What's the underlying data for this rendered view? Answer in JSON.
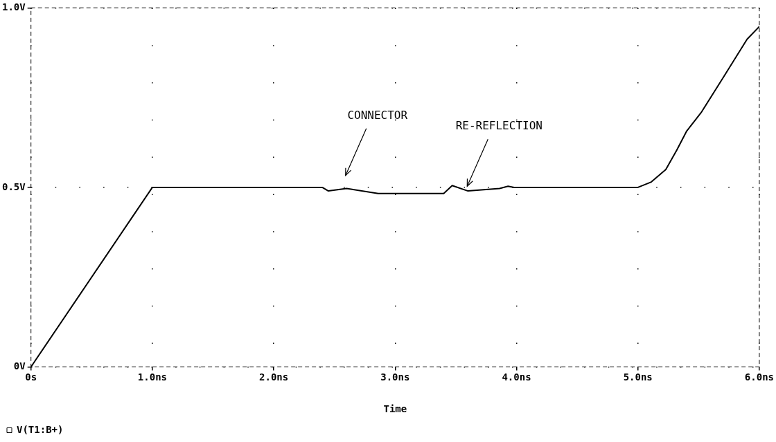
{
  "chart_data": {
    "type": "line",
    "xlabel": "Time",
    "x": [
      0,
      1.0,
      2.4,
      2.45,
      2.6,
      2.86,
      3.4,
      3.47,
      3.6,
      3.86,
      3.93,
      3.98,
      5.0,
      5.11,
      5.23,
      5.32,
      5.4,
      5.52,
      5.71,
      5.9,
      6.0
    ],
    "series": [
      {
        "name": "V(T1:B+)",
        "color": "#000000",
        "values": [
          0,
          0.5,
          0.5,
          0.49,
          0.497,
          0.483,
          0.483,
          0.505,
          0.49,
          0.497,
          0.503,
          0.5,
          0.5,
          0.515,
          0.55,
          0.604,
          0.656,
          0.708,
          0.81,
          0.913,
          0.948
        ]
      }
    ],
    "xlim": [
      0,
      6
    ],
    "ylim": [
      0,
      1
    ],
    "xticks": [
      {
        "value": 0,
        "label": "0s"
      },
      {
        "value": 1,
        "label": "1.0ns"
      },
      {
        "value": 2,
        "label": "2.0ns"
      },
      {
        "value": 3,
        "label": "3.0ns"
      },
      {
        "value": 4,
        "label": "4.0ns"
      },
      {
        "value": 5,
        "label": "5.0ns"
      },
      {
        "value": 6,
        "label": "6.0ns"
      }
    ],
    "yticks": [
      {
        "value": 0,
        "label": "0V"
      },
      {
        "value": 0.5,
        "label": "0.5V"
      },
      {
        "value": 1,
        "label": "1.0V"
      }
    ],
    "annotations": [
      "CONNECTOR",
      "RE-REFLECTION"
    ],
    "grid": true,
    "legend": "bottom left",
    "marker": "none",
    "line_style": "solid"
  }
}
